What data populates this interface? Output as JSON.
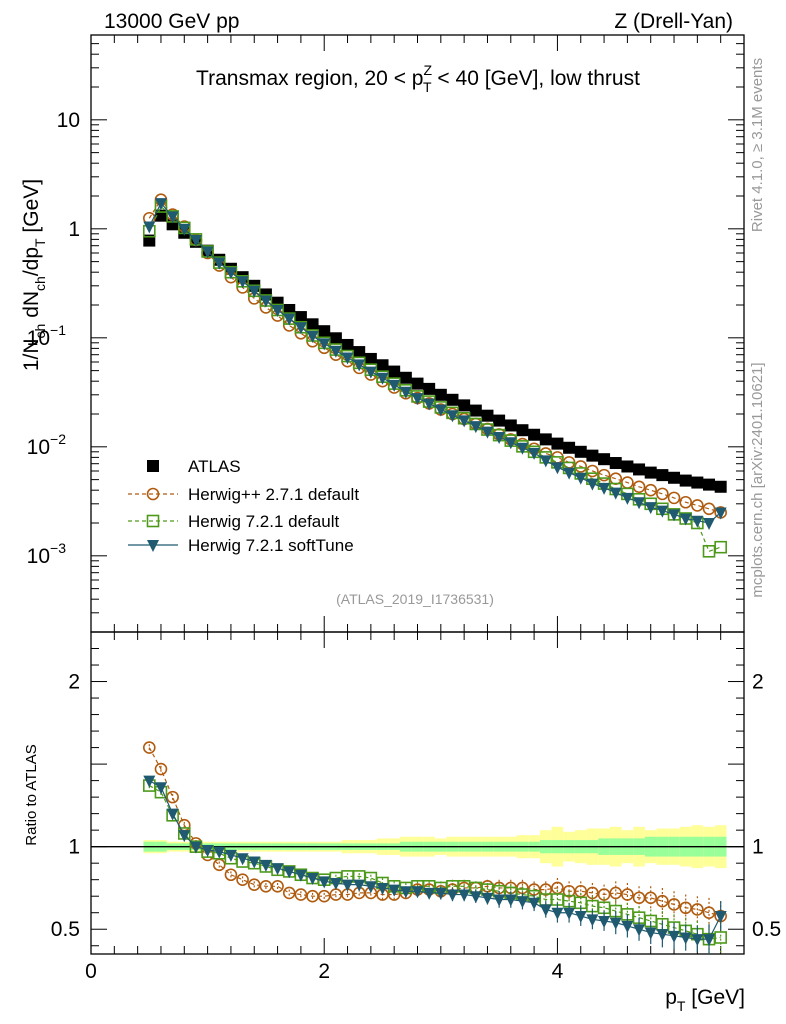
{
  "header": {
    "left": "13000 GeV pp",
    "right": "Z (Drell-Yan)"
  },
  "side_labels": {
    "top": "Rivet 4.1.0, ≥ 3.1M events",
    "bottom": "mcplots.cern.ch [arXiv:2401.10621]"
  },
  "chart_data": [
    {
      "panel": "main",
      "type": "scatter",
      "title": "Transmax region, 20 < p",
      "title_sub": "T",
      "title_sup": "Z",
      "title_rest": " < 40 [GeV], low thrust",
      "ylabel": "1/N",
      "ylabel_parts": [
        "1/N",
        "ch",
        " dN",
        "ch",
        "/dp",
        "T",
        " [GeV]"
      ],
      "yscale": "log",
      "ylim": [
        0.0002,
        60
      ],
      "xlim": [
        0,
        5.6
      ],
      "y_ticks": [
        {
          "value": 10,
          "label": "10"
        },
        {
          "value": 1,
          "label": "1"
        },
        {
          "value": 0.1,
          "label": "10",
          "exp": "−1"
        },
        {
          "value": 0.01,
          "label": "10",
          "exp": "−2"
        },
        {
          "value": 0.001,
          "label": "10",
          "exp": "−3"
        }
      ],
      "watermark": "(ATLAS_2019_I1736531)",
      "legend": [
        {
          "label": "ATLAS",
          "marker": "square-filled",
          "color": "#000000"
        },
        {
          "label": "Herwig++ 2.7.1 default",
          "marker": "circle-open",
          "color": "#b05c10",
          "line": "dashed"
        },
        {
          "label": "Herwig 7.2.1 default",
          "marker": "square-open",
          "color": "#4d9a1a",
          "line": "dashed"
        },
        {
          "label": "Herwig 7.2.1 softTune",
          "marker": "triangle-down-filled",
          "color": "#1f5a70",
          "line": "solid"
        }
      ],
      "x": [
        0.5,
        0.6,
        0.7,
        0.8,
        0.9,
        1.0,
        1.1,
        1.2,
        1.3,
        1.4,
        1.5,
        1.6,
        1.7,
        1.8,
        1.9,
        2.0,
        2.1,
        2.2,
        2.3,
        2.4,
        2.5,
        2.6,
        2.7,
        2.8,
        2.9,
        3.0,
        3.1,
        3.2,
        3.3,
        3.4,
        3.5,
        3.6,
        3.7,
        3.8,
        3.9,
        4.0,
        4.1,
        4.2,
        4.3,
        4.4,
        4.5,
        4.6,
        4.7,
        4.8,
        4.9,
        5.0,
        5.1,
        5.2,
        5.3,
        5.4
      ],
      "series": [
        {
          "name": "ATLAS",
          "values": [
            0.78,
            1.32,
            1.1,
            0.92,
            0.76,
            0.63,
            0.52,
            0.43,
            0.36,
            0.3,
            0.25,
            0.21,
            0.18,
            0.155,
            0.133,
            0.115,
            0.099,
            0.086,
            0.074,
            0.064,
            0.056,
            0.049,
            0.043,
            0.038,
            0.034,
            0.03,
            0.027,
            0.024,
            0.0215,
            0.0193,
            0.0174,
            0.0157,
            0.0142,
            0.0129,
            0.0117,
            0.0107,
            0.0098,
            0.009,
            0.0083,
            0.0077,
            0.0071,
            0.0066,
            0.0062,
            0.0058,
            0.0055,
            0.0052,
            0.0049,
            0.0047,
            0.0045,
            0.0043
          ]
        },
        {
          "name": "Herwig++ 2.7.1 default",
          "values": [
            1.25,
            1.85,
            1.35,
            1.05,
            0.79,
            0.6,
            0.46,
            0.36,
            0.29,
            0.23,
            0.19,
            0.16,
            0.13,
            0.11,
            0.093,
            0.081,
            0.07,
            0.061,
            0.053,
            0.046,
            0.04,
            0.035,
            0.031,
            0.028,
            0.025,
            0.022,
            0.02,
            0.018,
            0.0162,
            0.0146,
            0.013,
            0.0117,
            0.0106,
            0.0096,
            0.0087,
            0.008,
            0.0072,
            0.0066,
            0.006,
            0.0055,
            0.0051,
            0.0047,
            0.0043,
            0.004,
            0.0037,
            0.0034,
            0.0031,
            0.0029,
            0.0027,
            0.0025
          ]
        },
        {
          "name": "Herwig 7.2.1 default",
          "values": [
            0.95,
            1.6,
            1.3,
            1.02,
            0.8,
            0.62,
            0.49,
            0.4,
            0.33,
            0.27,
            0.22,
            0.18,
            0.15,
            0.125,
            0.105,
            0.09,
            0.078,
            0.068,
            0.059,
            0.051,
            0.044,
            0.038,
            0.033,
            0.029,
            0.026,
            0.023,
            0.0205,
            0.0183,
            0.0162,
            0.0144,
            0.0128,
            0.0114,
            0.0101,
            0.009,
            0.008,
            0.0072,
            0.0064,
            0.0057,
            0.0051,
            0.0046,
            0.0041,
            0.0037,
            0.0033,
            0.003,
            0.0027,
            0.0024,
            0.0022,
            0.002,
            0.0011,
            0.0012
          ]
        },
        {
          "name": "Herwig 7.2.1 softTune",
          "values": [
            1.05,
            1.72,
            1.3,
            1.0,
            0.79,
            0.62,
            0.49,
            0.4,
            0.33,
            0.27,
            0.22,
            0.18,
            0.15,
            0.125,
            0.104,
            0.089,
            0.076,
            0.066,
            0.057,
            0.049,
            0.043,
            0.037,
            0.032,
            0.028,
            0.025,
            0.022,
            0.0195,
            0.0175,
            0.0155,
            0.0138,
            0.0123,
            0.011,
            0.0098,
            0.0088,
            0.0075,
            0.0065,
            0.0058,
            0.0052,
            0.0046,
            0.0042,
            0.0038,
            0.0034,
            0.0031,
            0.0028,
            0.0026,
            0.0024,
            0.0022,
            0.0021,
            0.002,
            0.0025
          ]
        }
      ]
    },
    {
      "panel": "ratio",
      "type": "line",
      "ylabel": "Ratio to ATLAS",
      "xlabel": "p",
      "xlabel_sub": "T",
      "xlabel_rest": " [GeV]",
      "ylim": [
        0.35,
        2.3
      ],
      "xlim": [
        0,
        5.6
      ],
      "y_ticks": [
        {
          "value": 0.5,
          "label": "0.5"
        },
        {
          "value": 1,
          "label": "1"
        },
        {
          "value": 2,
          "label": "2"
        }
      ],
      "x_ticks": [
        {
          "value": 0,
          "label": "0"
        },
        {
          "value": 2,
          "label": "2"
        },
        {
          "value": 4,
          "label": "4"
        }
      ],
      "band_inner": [
        0.03,
        0.03,
        0.02,
        0.02,
        0.02,
        0.02,
        0.02,
        0.02,
        0.02,
        0.02,
        0.02,
        0.02,
        0.02,
        0.02,
        0.02,
        0.02,
        0.02,
        0.02,
        0.02,
        0.02,
        0.02,
        0.02,
        0.03,
        0.03,
        0.03,
        0.03,
        0.03,
        0.03,
        0.03,
        0.03,
        0.03,
        0.03,
        0.03,
        0.03,
        0.04,
        0.04,
        0.04,
        0.04,
        0.04,
        0.05,
        0.05,
        0.05,
        0.05,
        0.06,
        0.06,
        0.06,
        0.06,
        0.06,
        0.06,
        0.06
      ],
      "band_outer": [
        0.04,
        0.04,
        0.03,
        0.03,
        0.03,
        0.03,
        0.03,
        0.03,
        0.03,
        0.03,
        0.03,
        0.03,
        0.03,
        0.03,
        0.03,
        0.03,
        0.03,
        0.04,
        0.04,
        0.04,
        0.05,
        0.05,
        0.06,
        0.06,
        0.06,
        0.05,
        0.06,
        0.06,
        0.06,
        0.06,
        0.06,
        0.06,
        0.07,
        0.07,
        0.1,
        0.12,
        0.09,
        0.1,
        0.11,
        0.11,
        0.12,
        0.1,
        0.12,
        0.1,
        0.11,
        0.11,
        0.12,
        0.13,
        0.12,
        0.13
      ],
      "series": [
        {
          "name": "Herwig++ 2.7.1 default",
          "values": [
            1.6,
            1.47,
            1.3,
            1.13,
            1.02,
            0.95,
            0.89,
            0.83,
            0.8,
            0.77,
            0.76,
            0.76,
            0.72,
            0.71,
            0.7,
            0.7,
            0.71,
            0.71,
            0.72,
            0.72,
            0.71,
            0.71,
            0.72,
            0.74,
            0.74,
            0.73,
            0.74,
            0.75,
            0.75,
            0.76,
            0.75,
            0.75,
            0.75,
            0.74,
            0.74,
            0.75,
            0.73,
            0.73,
            0.72,
            0.71,
            0.72,
            0.71,
            0.69,
            0.69,
            0.67,
            0.65,
            0.63,
            0.62,
            0.6,
            0.58
          ],
          "err": [
            0.02,
            0.02,
            0.02,
            0.02,
            0.02,
            0.02,
            0.02,
            0.02,
            0.02,
            0.02,
            0.02,
            0.02,
            0.02,
            0.02,
            0.02,
            0.02,
            0.02,
            0.02,
            0.02,
            0.02,
            0.03,
            0.03,
            0.03,
            0.03,
            0.03,
            0.04,
            0.04,
            0.04,
            0.04,
            0.04,
            0.05,
            0.05,
            0.05,
            0.05,
            0.05,
            0.06,
            0.06,
            0.06,
            0.06,
            0.06,
            0.07,
            0.07,
            0.07,
            0.07,
            0.08,
            0.08,
            0.08,
            0.08,
            0.09,
            0.09
          ]
        },
        {
          "name": "Herwig 7.2.1 default",
          "values": [
            1.37,
            1.33,
            1.19,
            1.08,
            1.0,
            0.97,
            0.96,
            0.93,
            0.91,
            0.9,
            0.88,
            0.86,
            0.85,
            0.83,
            0.81,
            0.8,
            0.81,
            0.82,
            0.82,
            0.81,
            0.78,
            0.76,
            0.75,
            0.76,
            0.76,
            0.75,
            0.76,
            0.76,
            0.75,
            0.74,
            0.73,
            0.72,
            0.71,
            0.7,
            0.68,
            0.68,
            0.67,
            0.66,
            0.64,
            0.63,
            0.61,
            0.59,
            0.57,
            0.55,
            0.53,
            0.51,
            0.49,
            0.47,
            0.44,
            0.45
          ],
          "err": [
            0.02,
            0.02,
            0.02,
            0.02,
            0.02,
            0.02,
            0.02,
            0.02,
            0.02,
            0.02,
            0.02,
            0.02,
            0.02,
            0.02,
            0.02,
            0.02,
            0.02,
            0.02,
            0.02,
            0.02,
            0.03,
            0.03,
            0.03,
            0.03,
            0.03,
            0.04,
            0.04,
            0.04,
            0.04,
            0.04,
            0.05,
            0.05,
            0.05,
            0.05,
            0.05,
            0.06,
            0.06,
            0.06,
            0.06,
            0.06,
            0.07,
            0.07,
            0.07,
            0.07,
            0.08,
            0.08,
            0.08,
            0.08,
            0.09,
            0.09
          ]
        },
        {
          "name": "Herwig 7.2.1 softTune",
          "values": [
            1.4,
            1.36,
            1.2,
            1.07,
            1.0,
            0.98,
            0.97,
            0.95,
            0.93,
            0.91,
            0.89,
            0.87,
            0.85,
            0.83,
            0.81,
            0.79,
            0.78,
            0.77,
            0.77,
            0.76,
            0.75,
            0.74,
            0.73,
            0.73,
            0.72,
            0.72,
            0.71,
            0.71,
            0.7,
            0.69,
            0.68,
            0.68,
            0.67,
            0.66,
            0.62,
            0.6,
            0.6,
            0.58,
            0.56,
            0.55,
            0.54,
            0.52,
            0.5,
            0.48,
            0.47,
            0.46,
            0.45,
            0.44,
            0.44,
            0.58
          ],
          "err": [
            0.02,
            0.02,
            0.02,
            0.02,
            0.02,
            0.02,
            0.02,
            0.02,
            0.02,
            0.02,
            0.02,
            0.02,
            0.02,
            0.02,
            0.02,
            0.02,
            0.02,
            0.02,
            0.02,
            0.02,
            0.03,
            0.03,
            0.03,
            0.03,
            0.03,
            0.04,
            0.04,
            0.04,
            0.04,
            0.04,
            0.05,
            0.05,
            0.05,
            0.05,
            0.05,
            0.06,
            0.06,
            0.06,
            0.06,
            0.06,
            0.07,
            0.07,
            0.07,
            0.07,
            0.08,
            0.08,
            0.08,
            0.08,
            0.09,
            0.09
          ]
        }
      ]
    }
  ],
  "colors": {
    "atlas": "#000000",
    "herwigpp": "#b05c10",
    "herwig_default": "#4d9a1a",
    "herwig_soft": "#1f5a70",
    "band_outer": "#ffff99",
    "band_inner": "#99ff99",
    "watermark": "#999999"
  }
}
